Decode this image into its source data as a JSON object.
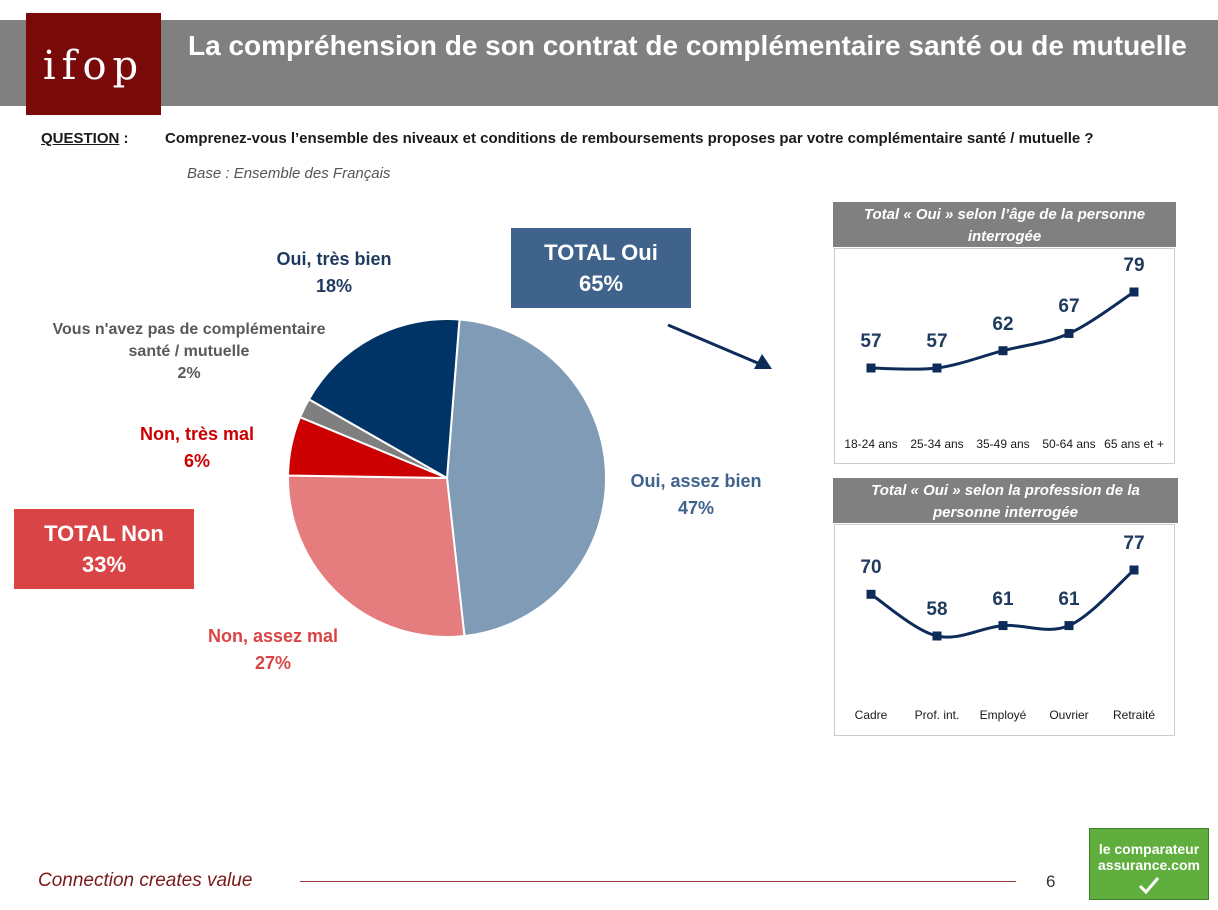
{
  "header": {
    "logo_text": "ifop",
    "title": "La compréhension de son contrat de complémentaire santé ou de mutuelle"
  },
  "question": {
    "label": "QUESTION",
    "label_suffix": " :",
    "text": "Comprenez-vous l’ensemble des niveaux et conditions de remboursements proposes par votre complémentaire santé / mutuelle ?",
    "base": "Base : Ensemble des Français"
  },
  "totals": {
    "oui_label": "TOTAL Oui",
    "oui_value": "65%",
    "non_label": "TOTAL Non",
    "non_value": "33%"
  },
  "chart_data": [
    {
      "type": "pie",
      "slices": [
        {
          "label": "Oui, assez bien",
          "value": 47,
          "display": "47%",
          "color": "#7f9bb5"
        },
        {
          "label": "Non, assez mal",
          "value": 27,
          "display": "27%",
          "color": "#e57d7e"
        },
        {
          "label": "Non, très mal",
          "value": 6,
          "display": "6%",
          "color": "#cc0000"
        },
        {
          "label": "Vous n'avez pas de complémentaire santé / mutuelle",
          "value": 2,
          "display": "2%",
          "color": "#7f7f7f"
        },
        {
          "label": "Oui, très bien",
          "value": 18,
          "display": "18%",
          "color": "#003366"
        }
      ]
    },
    {
      "type": "line",
      "title": "Total « Oui » selon l’âge de la personne interrogée",
      "categories": [
        "18-24 ans",
        "25-34 ans",
        "35-49 ans",
        "50-64 ans",
        "65 ans et +"
      ],
      "values": [
        57,
        57,
        62,
        67,
        79
      ],
      "color": "#0d2c5a"
    },
    {
      "type": "line",
      "title": "Total « Oui » selon la profession de la personne interrogée",
      "categories": [
        "Cadre",
        "Prof. int.",
        "Employé",
        "Ouvrier",
        "Retraité"
      ],
      "values": [
        70,
        58,
        61,
        61,
        77
      ],
      "color": "#0d2c5a"
    }
  ],
  "footer": {
    "tagline": "Connection creates value",
    "page_number": "6",
    "brand_line1": "le comparateur",
    "brand_line2": "assurance.com"
  }
}
